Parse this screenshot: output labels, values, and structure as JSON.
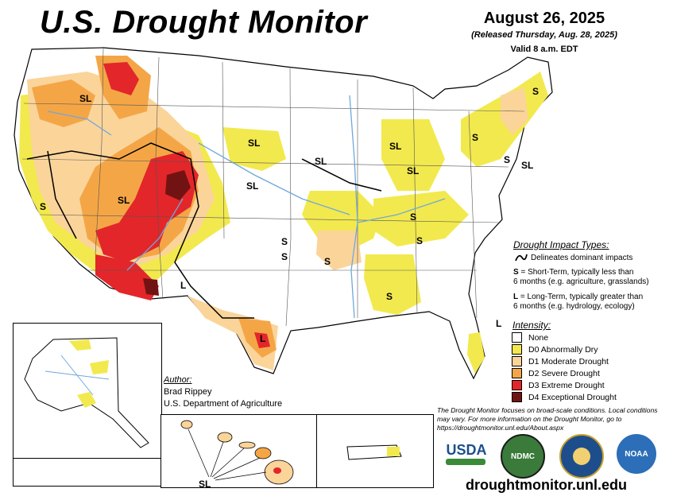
{
  "title": "U.S. Drought Monitor",
  "date": "August 26, 2025",
  "released": "(Released Thursday, Aug. 28, 2025)",
  "valid": "Valid 8 a.m. EDT",
  "impact": {
    "heading": "Drought Impact Types:",
    "delineates": "Delineates dominant impacts",
    "s_key": "S",
    "s_line1": "= Short-Term, typically less than",
    "s_line2": "6 months (e.g. agriculture, grasslands)",
    "l_key": "L",
    "l_line1": "= Long-Term, typically greater than",
    "l_line2": "6 months (e.g. hydrology, ecology)"
  },
  "intensity": {
    "heading": "Intensity:",
    "items": [
      {
        "label": "None",
        "color": "#ffffff"
      },
      {
        "label": "D0 Abnormally Dry",
        "color": "#f2e94e"
      },
      {
        "label": "D1 Moderate Drought",
        "color": "#fbd49a"
      },
      {
        "label": "D2 Severe Drought",
        "color": "#f4a646"
      },
      {
        "label": "D3 Extreme Drought",
        "color": "#e3262a"
      },
      {
        "label": "D4 Exceptional Drought",
        "color": "#721313"
      }
    ]
  },
  "author": {
    "heading": "Author:",
    "name": "Brad Rippey",
    "org": "U.S. Department of Agriculture"
  },
  "note": "The Drought Monitor focuses on broad-scale conditions. Local conditions may vary. For more information on the Drought Monitor, go to https://droughtmonitor.unl.edu/About.aspx",
  "logos": {
    "usda": "USDA",
    "ndmc": "NDMC",
    "noaa": "NOAA"
  },
  "url": "droughtmonitor.unl.edu",
  "map_labels": {
    "sl": "SL",
    "s": "S",
    "l": "L"
  },
  "colors": {
    "water": "#6fa8dc",
    "border": "#555555"
  }
}
